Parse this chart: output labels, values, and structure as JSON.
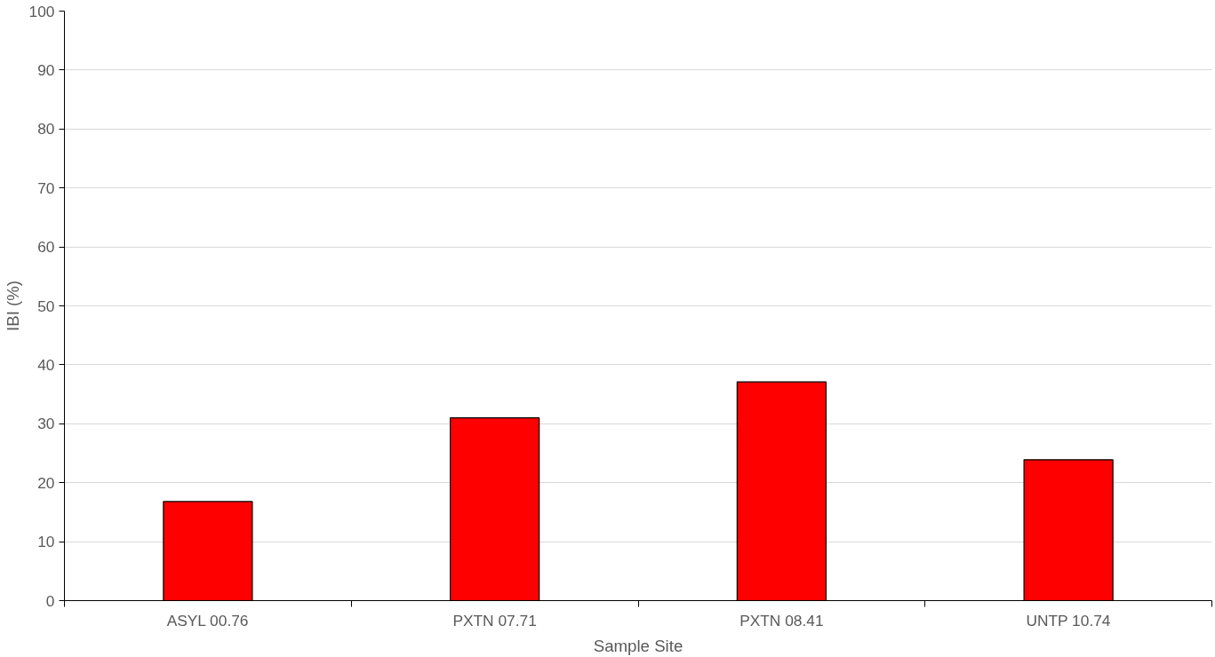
{
  "chart_data": {
    "type": "bar",
    "xlabel": "Sample Site",
    "ylabel": "IBI (%)",
    "categories": [
      "ASYL 00.76",
      "PXTN 07.71",
      "PXTN 08.41",
      "UNTP 10.74"
    ],
    "values": [
      16.8,
      31.0,
      37.1,
      23.9
    ],
    "color": "#ff0000",
    "ylim": [
      0,
      100
    ],
    "yticks": [
      0,
      10,
      20,
      30,
      40,
      50,
      60,
      70,
      80,
      90,
      100
    ],
    "grid": "y"
  }
}
